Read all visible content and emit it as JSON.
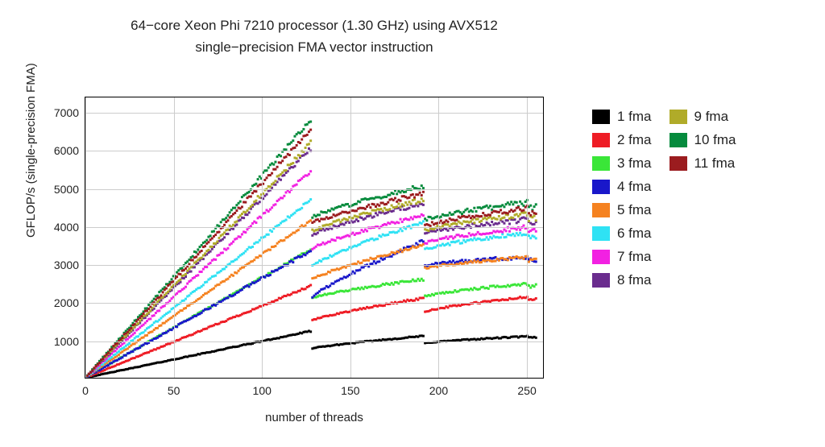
{
  "chart": {
    "type": "scatter",
    "title_line1": "64−core Xeon Phi 7210 processor (1.30 GHz) using AVX512",
    "title_line2": "single−precision FMA vector instruction",
    "title_fontsize": 17,
    "xlabel": "number of threads",
    "ylabel": "GFLOP/s (single-precision FMA)",
    "label_fontsize": 15,
    "tick_fontsize": 14,
    "legend_fontsize": 17,
    "background_color": "#ffffff",
    "border_color": "#000000",
    "grid_color": "#cccccc",
    "text_color": "#222222",
    "xlim": [
      0,
      260
    ],
    "ylim": [
      0,
      7400
    ],
    "xticks": [
      0,
      50,
      100,
      150,
      200,
      250
    ],
    "yticks": [
      1000,
      2000,
      3000,
      4000,
      5000,
      6000,
      7000
    ],
    "segments": [
      64,
      128,
      192,
      256
    ],
    "marker_size": 3,
    "series": [
      {
        "label": "1 fma",
        "color": "#000000",
        "peaks": [
          640,
          1230,
          1100,
          1100
        ],
        "noise": 25
      },
      {
        "label": "2 fma",
        "color": "#ee1c25",
        "peaks": [
          1280,
          2420,
          2100,
          2150
        ],
        "noise": 40
      },
      {
        "label": "3 fma",
        "color": "#3ae638",
        "peaks": [
          1920,
          3380,
          2600,
          2500
        ],
        "noise": 50
      },
      {
        "label": "4 fma",
        "color": "#1917ca",
        "peaks": [
          2560,
          3350,
          3600,
          3200
        ],
        "noise": 70
      },
      {
        "label": "5 fma",
        "color": "#f58220",
        "peaks": [
          3200,
          4150,
          3500,
          3200
        ],
        "noise": 60
      },
      {
        "label": "6 fma",
        "color": "#2fe2f4",
        "peaks": [
          3840,
          4700,
          4100,
          3850
        ],
        "noise": 70
      },
      {
        "label": "7 fma",
        "color": "#f221e2",
        "peaks": [
          4480,
          5450,
          4300,
          4000
        ],
        "noise": 80
      },
      {
        "label": "8 fma",
        "color": "#6a2c8e",
        "peaks": [
          5120,
          6050,
          4600,
          4200
        ],
        "noise": 90
      },
      {
        "label": "9 fma",
        "color": "#b0ab29",
        "peaks": [
          5760,
          6200,
          4700,
          4350
        ],
        "noise": 90
      },
      {
        "label": "10 fma",
        "color": "#058b3d",
        "peaks": [
          6400,
          6800,
          5050,
          4650
        ],
        "noise": 100
      },
      {
        "label": "11 fma",
        "color": "#9b1c1f",
        "peaks": [
          6400,
          6550,
          4850,
          4500
        ],
        "noise": 95
      }
    ]
  }
}
